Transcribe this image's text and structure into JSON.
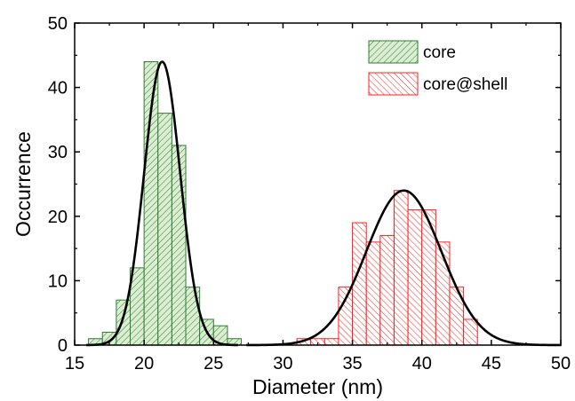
{
  "chart_data": {
    "type": "bar",
    "xlabel": "Diameter (nm)",
    "ylabel": "Occurrence",
    "xlim": [
      15,
      50
    ],
    "ylim": [
      0,
      50
    ],
    "x_ticks": [
      "15",
      "20",
      "25",
      "30",
      "35",
      "40",
      "45",
      "50"
    ],
    "y_ticks": [
      "0",
      "10",
      "20",
      "30",
      "40",
      "50"
    ],
    "bin_width": 1,
    "legend_position": "top-right",
    "series": [
      {
        "name": "core",
        "color": "#2e7d32",
        "fill": "#dbeed2",
        "hatch": "forward-diagonal",
        "bins": [
          {
            "x": 16.5,
            "y": 1
          },
          {
            "x": 17.5,
            "y": 2
          },
          {
            "x": 18.5,
            "y": 7
          },
          {
            "x": 19.5,
            "y": 12
          },
          {
            "x": 20.5,
            "y": 44
          },
          {
            "x": 21.5,
            "y": 36
          },
          {
            "x": 22.5,
            "y": 31
          },
          {
            "x": 23.5,
            "y": 9
          },
          {
            "x": 24.5,
            "y": 4
          },
          {
            "x": 25.5,
            "y": 3
          },
          {
            "x": 26.5,
            "y": 1
          }
        ],
        "fit": {
          "type": "gaussian",
          "center": 21.3,
          "sigma": 1.3,
          "amplitude": 44
        }
      },
      {
        "name": "core@shell",
        "color": "#ff2020",
        "fill": "#ffffff",
        "hatch": "back-diagonal",
        "bins": [
          {
            "x": 31.5,
            "y": 1
          },
          {
            "x": 32.5,
            "y": 1
          },
          {
            "x": 33.5,
            "y": 1
          },
          {
            "x": 34.5,
            "y": 9
          },
          {
            "x": 35.5,
            "y": 19
          },
          {
            "x": 36.5,
            "y": 16
          },
          {
            "x": 37.5,
            "y": 17
          },
          {
            "x": 38.5,
            "y": 24
          },
          {
            "x": 39.5,
            "y": 21
          },
          {
            "x": 40.5,
            "y": 21
          },
          {
            "x": 41.5,
            "y": 16
          },
          {
            "x": 42.5,
            "y": 9
          },
          {
            "x": 43.5,
            "y": 4
          }
        ],
        "fit": {
          "type": "gaussian",
          "center": 38.7,
          "sigma": 2.7,
          "amplitude": 24
        }
      }
    ]
  }
}
